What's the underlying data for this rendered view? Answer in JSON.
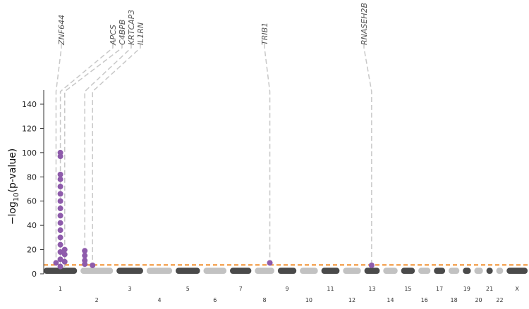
{
  "chart_data": {
    "type": "scatter",
    "subtype": "manhattan",
    "ylabel": "−log10(p-value)",
    "ylabel_main": "−log",
    "ylabel_sub": "10",
    "ylabel_tail": "(p-value)",
    "ylim": [
      0,
      150
    ],
    "yticks": [
      0,
      20,
      40,
      60,
      80,
      100,
      120,
      140
    ],
    "threshold": 7.3,
    "threshold_color": "#f08a24",
    "band_colors": [
      "#4a4a4a",
      "#c2c2c2"
    ],
    "highlight_color": "#8e5bab",
    "chromosomes": [
      "1",
      "2",
      "3",
      "4",
      "5",
      "6",
      "7",
      "8",
      "9",
      "10",
      "11",
      "12",
      "13",
      "14",
      "15",
      "16",
      "17",
      "18",
      "19",
      "20",
      "21",
      "22",
      "X"
    ],
    "chr_relsize": [
      248,
      242,
      198,
      190,
      181,
      171,
      159,
      145,
      138,
      134,
      135,
      133,
      114,
      107,
      102,
      90,
      83,
      80,
      59,
      64,
      47,
      51,
      156
    ],
    "genes": [
      "ZNF644",
      "APCS",
      "C4BPB",
      "KRTCAP3",
      "IL1RN",
      "TRIB1",
      "RNASEH2B"
    ],
    "points": [
      {
        "chr": "1",
        "pos": 0.37,
        "y": 9
      },
      {
        "chr": "1",
        "pos": 0.5,
        "y": 100
      },
      {
        "chr": "1",
        "pos": 0.5,
        "y": 97
      },
      {
        "chr": "1",
        "pos": 0.5,
        "y": 82
      },
      {
        "chr": "1",
        "pos": 0.5,
        "y": 78
      },
      {
        "chr": "1",
        "pos": 0.5,
        "y": 72
      },
      {
        "chr": "1",
        "pos": 0.5,
        "y": 66
      },
      {
        "chr": "1",
        "pos": 0.5,
        "y": 60
      },
      {
        "chr": "1",
        "pos": 0.5,
        "y": 54
      },
      {
        "chr": "1",
        "pos": 0.5,
        "y": 48
      },
      {
        "chr": "1",
        "pos": 0.5,
        "y": 42
      },
      {
        "chr": "1",
        "pos": 0.5,
        "y": 36
      },
      {
        "chr": "1",
        "pos": 0.5,
        "y": 30
      },
      {
        "chr": "1",
        "pos": 0.5,
        "y": 24
      },
      {
        "chr": "1",
        "pos": 0.5,
        "y": 18
      },
      {
        "chr": "1",
        "pos": 0.5,
        "y": 12
      },
      {
        "chr": "1",
        "pos": 0.5,
        "y": 6
      },
      {
        "chr": "1",
        "pos": 0.63,
        "y": 20
      },
      {
        "chr": "1",
        "pos": 0.63,
        "y": 16
      },
      {
        "chr": "1",
        "pos": 0.63,
        "y": 10
      },
      {
        "chr": "2",
        "pos": 0.13,
        "y": 19
      },
      {
        "chr": "2",
        "pos": 0.13,
        "y": 15
      },
      {
        "chr": "2",
        "pos": 0.13,
        "y": 11
      },
      {
        "chr": "2",
        "pos": 0.13,
        "y": 8
      },
      {
        "chr": "2",
        "pos": 0.37,
        "y": 7
      },
      {
        "chr": "8",
        "pos": 0.77,
        "y": 9
      },
      {
        "chr": "13",
        "pos": 0.47,
        "y": 7
      }
    ]
  },
  "gene_labels": [
    {
      "text": "ZNF644",
      "chr": "1",
      "pos": 0.37
    },
    {
      "text": "APCS",
      "chr": "1",
      "pos": 0.5
    },
    {
      "text": "C4BPB",
      "chr": "1",
      "pos": 0.63
    },
    {
      "text": "KRTCAP3",
      "chr": "2",
      "pos": 0.13
    },
    {
      "text": "IL1RN",
      "chr": "2",
      "pos": 0.37
    },
    {
      "text": "TRIB1",
      "chr": "8",
      "pos": 0.77
    },
    {
      "text": "RNASEH2B",
      "chr": "13",
      "pos": 0.47
    }
  ]
}
